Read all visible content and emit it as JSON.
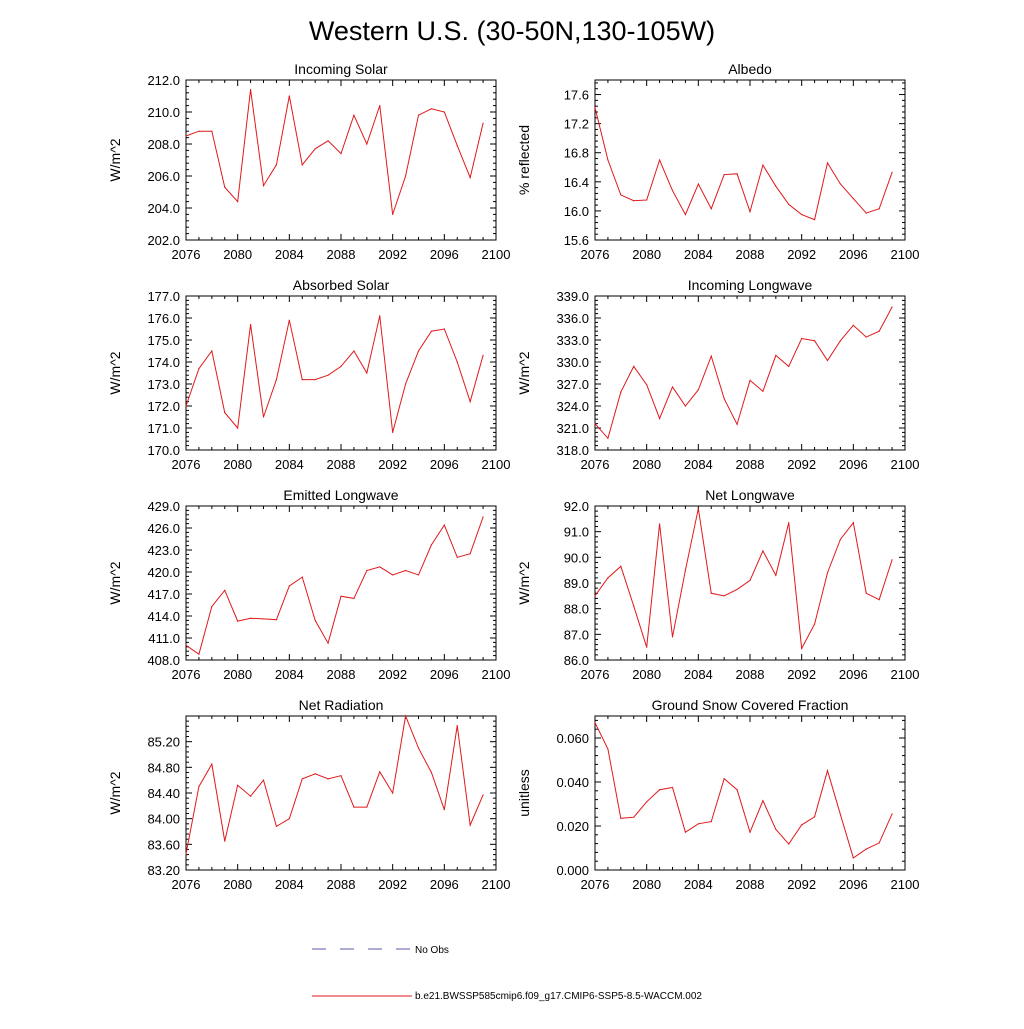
{
  "title": "Western U.S. (30-50N,130-105W)",
  "legend": {
    "obs_label": "No Obs",
    "obs_color": "#5a5aa8",
    "model_label": "b.e21.BWSSP585cmip6.f09_g17.CMIP6-SSP5-8.5-WACCM.002",
    "model_color": "#e0191c"
  },
  "chart_data": [
    {
      "type": "line",
      "title": "Incoming Solar",
      "ylabel": "W/m^2",
      "xlim": [
        2076,
        2100
      ],
      "ylim": [
        202.0,
        212.0
      ],
      "xticks": [
        2076,
        2080,
        2084,
        2088,
        2092,
        2096,
        2100
      ],
      "xtick_labels": [
        "2076",
        "2080",
        "2084",
        "2088",
        "2092",
        "2096",
        "2100"
      ],
      "yticks": [
        202.0,
        204.0,
        206.0,
        208.0,
        210.0,
        212.0
      ],
      "ytick_labels": [
        "202.0",
        "204.0",
        "206.0",
        "208.0",
        "210.0",
        "212.0"
      ],
      "series": [
        {
          "name": "b.e21.BWSSP585cmip6.f09_g17.CMIP6-SSP5-8.5-WACCM.002",
          "x": [
            2076,
            2077,
            2078,
            2079,
            2080,
            2081,
            2082,
            2083,
            2084,
            2085,
            2086,
            2087,
            2088,
            2089,
            2090,
            2091,
            2092,
            2093,
            2094,
            2095,
            2096,
            2097,
            2098,
            2099
          ],
          "values": [
            208.5,
            208.8,
            208.8,
            205.3,
            204.4,
            211.4,
            205.4,
            206.7,
            211.0,
            206.7,
            207.7,
            208.2,
            207.4,
            209.8,
            208.0,
            210.4,
            203.6,
            206.0,
            209.8,
            210.2,
            210.0,
            207.9,
            205.9,
            209.3
          ]
        }
      ]
    },
    {
      "type": "line",
      "title": "Albedo",
      "ylabel": "% reflected",
      "xlim": [
        2076,
        2100
      ],
      "ylim": [
        15.6,
        17.8
      ],
      "xticks": [
        2076,
        2080,
        2084,
        2088,
        2092,
        2096,
        2100
      ],
      "xtick_labels": [
        "2076",
        "2080",
        "2084",
        "2088",
        "2092",
        "2096",
        "2100"
      ],
      "yticks": [
        15.6,
        16.0,
        16.4,
        16.8,
        17.2,
        17.6
      ],
      "ytick_labels": [
        "15.6",
        "16.0",
        "16.4",
        "16.8",
        "17.2",
        "17.6"
      ],
      "series": [
        {
          "name": "b.e21.BWSSP585cmip6.f09_g17.CMIP6-SSP5-8.5-WACCM.002",
          "x": [
            2076,
            2077,
            2078,
            2079,
            2080,
            2081,
            2082,
            2083,
            2084,
            2085,
            2086,
            2087,
            2088,
            2089,
            2090,
            2091,
            2092,
            2093,
            2094,
            2095,
            2096,
            2097,
            2098,
            2099
          ],
          "values": [
            17.42,
            16.7,
            16.22,
            16.14,
            16.15,
            16.7,
            16.28,
            15.95,
            16.37,
            16.03,
            16.5,
            16.51,
            15.99,
            16.63,
            16.34,
            16.09,
            15.95,
            15.88,
            16.66,
            16.37,
            16.17,
            15.97,
            16.03,
            16.53
          ]
        }
      ]
    },
    {
      "type": "line",
      "title": "Absorbed Solar",
      "ylabel": "W/m^2",
      "xlim": [
        2076,
        2100
      ],
      "ylim": [
        170.0,
        177.0
      ],
      "xticks": [
        2076,
        2080,
        2084,
        2088,
        2092,
        2096,
        2100
      ],
      "xtick_labels": [
        "2076",
        "2080",
        "2084",
        "2088",
        "2092",
        "2096",
        "2100"
      ],
      "yticks": [
        170.0,
        171.0,
        172.0,
        173.0,
        174.0,
        175.0,
        176.0,
        177.0
      ],
      "ytick_labels": [
        "170.0",
        "171.0",
        "172.0",
        "173.0",
        "174.0",
        "175.0",
        "176.0",
        "177.0"
      ],
      "series": [
        {
          "name": "b.e21.BWSSP585cmip6.f09_g17.CMIP6-SSP5-8.5-WACCM.002",
          "x": [
            2076,
            2077,
            2078,
            2079,
            2080,
            2081,
            2082,
            2083,
            2084,
            2085,
            2086,
            2087,
            2088,
            2089,
            2090,
            2091,
            2092,
            2093,
            2094,
            2095,
            2096,
            2097,
            2098,
            2099
          ],
          "values": [
            172.0,
            173.7,
            174.5,
            171.7,
            171.0,
            175.7,
            171.5,
            173.2,
            175.9,
            173.2,
            173.2,
            173.4,
            173.8,
            174.5,
            173.5,
            176.1,
            170.8,
            173.0,
            174.5,
            175.4,
            175.5,
            174.0,
            172.2,
            174.3
          ]
        }
      ]
    },
    {
      "type": "line",
      "title": "Incoming Longwave",
      "ylabel": "W/m^2",
      "xlim": [
        2076,
        2100
      ],
      "ylim": [
        318.0,
        339.0
      ],
      "xticks": [
        2076,
        2080,
        2084,
        2088,
        2092,
        2096,
        2100
      ],
      "xtick_labels": [
        "2076",
        "2080",
        "2084",
        "2088",
        "2092",
        "2096",
        "2100"
      ],
      "yticks": [
        318.0,
        321.0,
        324.0,
        327.0,
        330.0,
        333.0,
        336.0,
        339.0
      ],
      "ytick_labels": [
        "318.0",
        "321.0",
        "324.0",
        "327.0",
        "330.0",
        "333.0",
        "336.0",
        "339.0"
      ],
      "series": [
        {
          "name": "b.e21.BWSSP585cmip6.f09_g17.CMIP6-SSP5-8.5-WACCM.002",
          "x": [
            2076,
            2077,
            2078,
            2079,
            2080,
            2081,
            2082,
            2083,
            2084,
            2085,
            2086,
            2087,
            2088,
            2089,
            2090,
            2091,
            2092,
            2093,
            2094,
            2095,
            2096,
            2097,
            2098,
            2099
          ],
          "values": [
            321.6,
            319.6,
            325.9,
            329.4,
            326.9,
            322.3,
            326.6,
            324.0,
            326.2,
            330.8,
            325.0,
            321.5,
            327.5,
            326.0,
            330.9,
            329.4,
            333.2,
            332.9,
            330.2,
            332.9,
            335.0,
            333.4,
            334.2,
            337.5
          ]
        }
      ]
    },
    {
      "type": "line",
      "title": "Emitted Longwave",
      "ylabel": "W/m^2",
      "xlim": [
        2076,
        2100
      ],
      "ylim": [
        408.0,
        429.0
      ],
      "xticks": [
        2076,
        2080,
        2084,
        2088,
        2092,
        2096,
        2100
      ],
      "xtick_labels": [
        "2076",
        "2080",
        "2084",
        "2088",
        "2092",
        "2096",
        "2100"
      ],
      "yticks": [
        408.0,
        411.0,
        414.0,
        417.0,
        420.0,
        423.0,
        426.0,
        429.0
      ],
      "ytick_labels": [
        "408.0",
        "411.0",
        "414.0",
        "417.0",
        "420.0",
        "423.0",
        "426.0",
        "429.0"
      ],
      "series": [
        {
          "name": "b.e21.BWSSP585cmip6.f09_g17.CMIP6-SSP5-8.5-WACCM.002",
          "x": [
            2076,
            2077,
            2078,
            2079,
            2080,
            2081,
            2082,
            2083,
            2084,
            2085,
            2086,
            2087,
            2088,
            2089,
            2090,
            2091,
            2092,
            2093,
            2094,
            2095,
            2096,
            2097,
            2098,
            2099
          ],
          "values": [
            410.0,
            408.8,
            415.3,
            417.5,
            413.3,
            413.7,
            413.6,
            413.5,
            418.1,
            419.3,
            413.4,
            410.3,
            416.7,
            416.4,
            420.2,
            420.7,
            419.6,
            420.2,
            419.6,
            423.7,
            426.4,
            422.0,
            422.5,
            427.5
          ]
        }
      ]
    },
    {
      "type": "line",
      "title": "Net Longwave",
      "ylabel": "W/m^2",
      "xlim": [
        2076,
        2100
      ],
      "ylim": [
        86.0,
        92.0
      ],
      "xticks": [
        2076,
        2080,
        2084,
        2088,
        2092,
        2096,
        2100
      ],
      "xtick_labels": [
        "2076",
        "2080",
        "2084",
        "2088",
        "2092",
        "2096",
        "2100"
      ],
      "yticks": [
        86.0,
        87.0,
        88.0,
        89.0,
        90.0,
        91.0,
        92.0
      ],
      "ytick_labels": [
        "86.0",
        "87.0",
        "88.0",
        "89.0",
        "90.0",
        "91.0",
        "92.0"
      ],
      "series": [
        {
          "name": "b.e21.BWSSP585cmip6.f09_g17.CMIP6-SSP5-8.5-WACCM.002",
          "x": [
            2076,
            2077,
            2078,
            2079,
            2080,
            2081,
            2082,
            2083,
            2084,
            2085,
            2086,
            2087,
            2088,
            2089,
            2090,
            2091,
            2092,
            2093,
            2094,
            2095,
            2096,
            2097,
            2098,
            2099
          ],
          "values": [
            88.5,
            89.2,
            89.65,
            88.1,
            86.5,
            91.3,
            86.9,
            89.5,
            91.9,
            88.6,
            88.5,
            88.75,
            89.1,
            90.25,
            89.3,
            91.35,
            86.45,
            87.4,
            89.4,
            90.7,
            91.35,
            88.6,
            88.35,
            89.9
          ]
        }
      ]
    },
    {
      "type": "line",
      "title": "Net Radiation",
      "ylabel": "W/m^2",
      "xlim": [
        2076,
        2100
      ],
      "ylim": [
        83.2,
        85.6
      ],
      "xticks": [
        2076,
        2080,
        2084,
        2088,
        2092,
        2096,
        2100
      ],
      "xtick_labels": [
        "2076",
        "2080",
        "2084",
        "2088",
        "2092",
        "2096",
        "2100"
      ],
      "yticks": [
        83.2,
        83.6,
        84.0,
        84.4,
        84.8,
        85.2
      ],
      "ytick_labels": [
        "83.20",
        "83.60",
        "84.00",
        "84.40",
        "84.80",
        "85.20"
      ],
      "series": [
        {
          "name": "b.e21.BWSSP585cmip6.f09_g17.CMIP6-SSP5-8.5-WACCM.002",
          "x": [
            2076,
            2077,
            2078,
            2079,
            2080,
            2081,
            2082,
            2083,
            2084,
            2085,
            2086,
            2087,
            2088,
            2089,
            2090,
            2091,
            2092,
            2093,
            2094,
            2095,
            2096,
            2097,
            2098,
            2099
          ],
          "values": [
            83.45,
            84.5,
            84.85,
            83.65,
            84.52,
            84.35,
            84.6,
            83.88,
            84.0,
            84.62,
            84.7,
            84.62,
            84.67,
            84.18,
            84.18,
            84.73,
            84.4,
            85.6,
            85.1,
            84.72,
            84.14,
            85.45,
            83.9,
            84.37
          ]
        }
      ]
    },
    {
      "type": "line",
      "title": "Ground Snow Covered Fraction",
      "ylabel": "unitless",
      "xlim": [
        2076,
        2100
      ],
      "ylim": [
        0.0,
        0.07
      ],
      "xticks": [
        2076,
        2080,
        2084,
        2088,
        2092,
        2096,
        2100
      ],
      "xtick_labels": [
        "2076",
        "2080",
        "2084",
        "2088",
        "2092",
        "2096",
        "2100"
      ],
      "yticks": [
        0.0,
        0.02,
        0.04,
        0.06
      ],
      "ytick_labels": [
        "0.000",
        "0.020",
        "0.040",
        "0.060"
      ],
      "series": [
        {
          "name": "b.e21.BWSSP585cmip6.f09_g17.CMIP6-SSP5-8.5-WACCM.002",
          "x": [
            2076,
            2077,
            2078,
            2079,
            2080,
            2081,
            2082,
            2083,
            2084,
            2085,
            2086,
            2087,
            2088,
            2089,
            2090,
            2091,
            2092,
            2093,
            2094,
            2095,
            2096,
            2097,
            2098,
            2099
          ],
          "values": [
            0.067,
            0.055,
            0.0235,
            0.024,
            0.031,
            0.0365,
            0.0375,
            0.0172,
            0.021,
            0.022,
            0.0415,
            0.0365,
            0.0172,
            0.0315,
            0.0185,
            0.0118,
            0.0205,
            0.0242,
            0.0452,
            0.0252,
            0.0055,
            0.0095,
            0.0123,
            0.0255
          ]
        }
      ]
    }
  ]
}
